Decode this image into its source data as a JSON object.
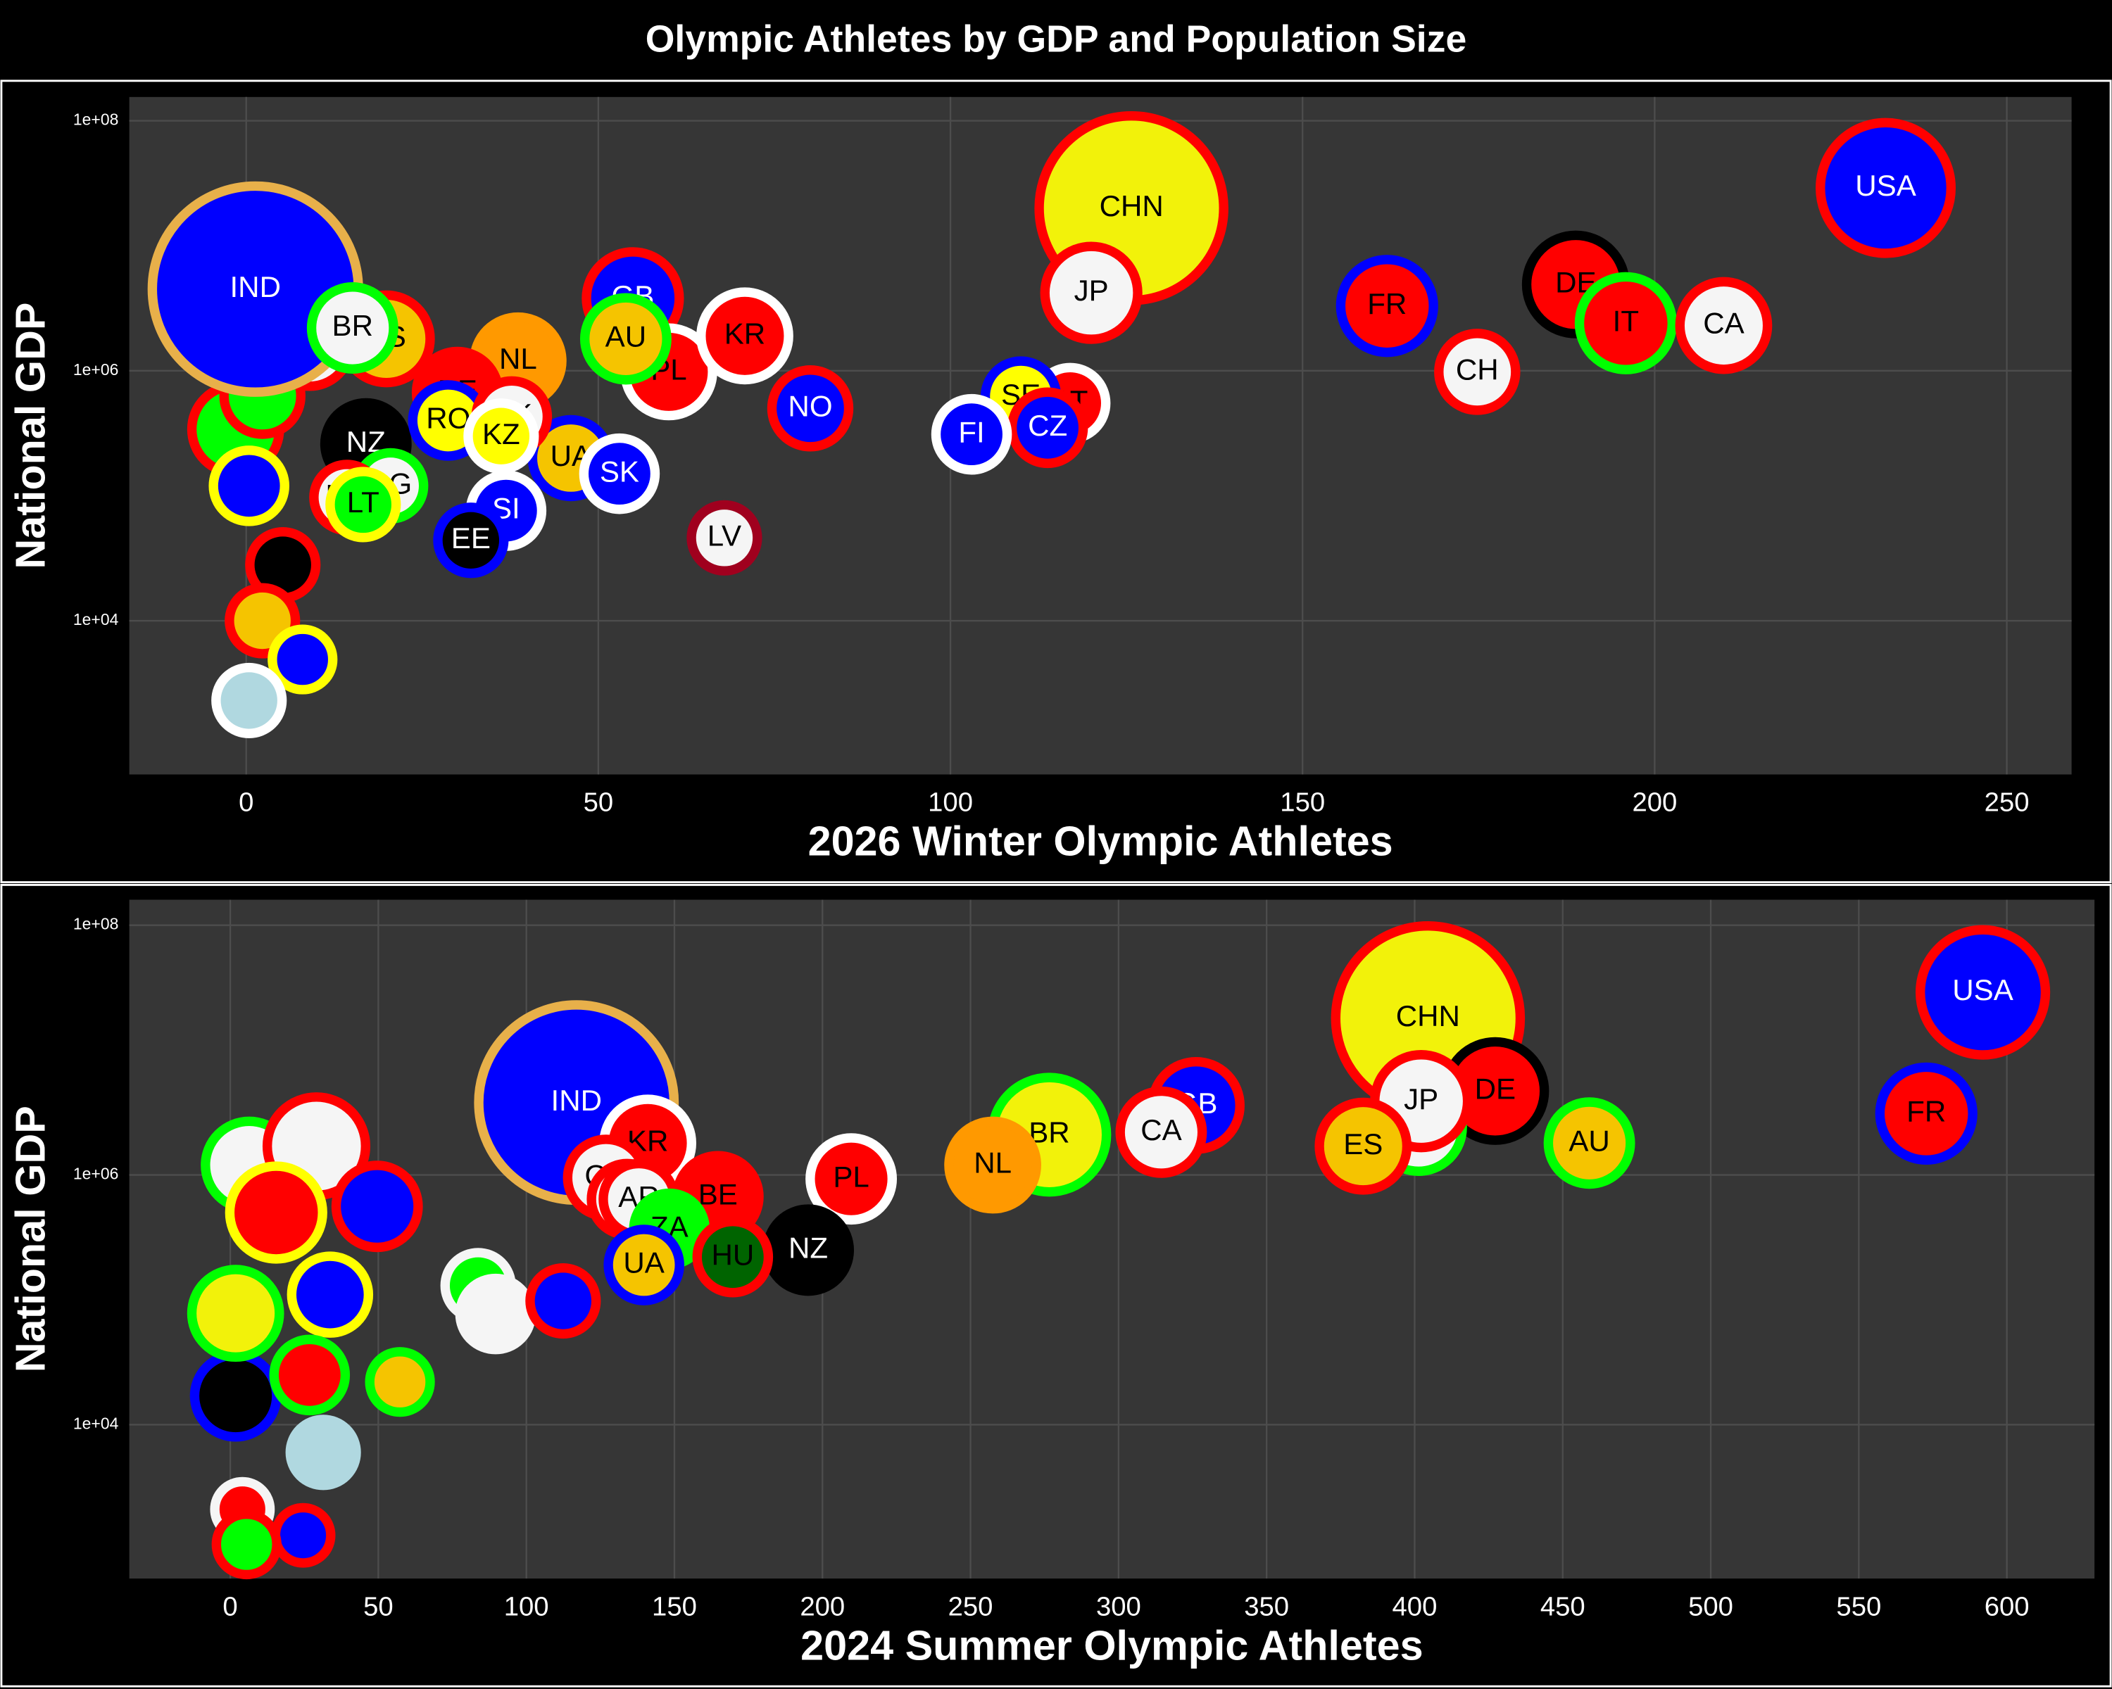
{
  "title": "Olympic Athletes by GDP and Population Size",
  "chart_data": [
    {
      "type": "scatter",
      "x_label": "2026 Winter Olympic Athletes",
      "y_label": "National GDP",
      "log_y": true,
      "grid": true,
      "xlim": [
        -16.6,
        259.2
      ],
      "xticks": [
        0,
        50,
        100,
        150,
        200,
        250
      ],
      "ylim": [
        589,
        155000000
      ],
      "yticks": [
        {
          "value": 10000,
          "label": "1e+04"
        },
        {
          "value": 1000000,
          "label": "1e+06"
        },
        {
          "value": 100000000,
          "label": "1e+08"
        }
      ],
      "labels": [
        null,
        null,
        null,
        null,
        null,
        null,
        null,
        null,
        null,
        "IND",
        "CHN",
        "USA",
        "DE",
        "JP",
        "FR",
        "IT",
        "GB",
        "CA",
        "PL",
        "KR",
        "NL",
        "ES",
        "AU",
        "BR",
        "BE",
        "NZ",
        "CH",
        "NO",
        "UA",
        "RO",
        "DK",
        "SK",
        "AT",
        "SE",
        "CZ",
        "FI",
        "SI",
        "KZ",
        "EE",
        "LV",
        "BG",
        "HR",
        "LT"
      ],
      "x": [
        -1.5,
        4.2,
        9,
        2.3,
        0.4,
        5.2,
        2.3,
        8,
        0.4,
        1.3,
        125.7,
        232.8,
        188.8,
        120,
        162,
        195.9,
        54.9,
        209.8,
        60,
        70.8,
        38.6,
        19.9,
        53.9,
        15.1,
        30,
        17,
        174.8,
        80.1,
        46.1,
        28.7,
        37.7,
        53,
        117,
        110,
        113.8,
        103,
        36.9,
        36.2,
        31.9,
        67.9,
        20.5,
        14.3,
        16.6
      ],
      "values": [
        340000,
        1700000,
        1600000,
        630000,
        120000,
        28000,
        10000,
        4900,
        2300,
        4500000,
        20000000,
        29000000,
        4900000,
        4200000,
        3300000,
        2400000,
        3800000,
        2300000,
        980000,
        1900000,
        1200000,
        1800000,
        1800000,
        2200000,
        670000,
        260000,
        980000,
        500000,
        200000,
        400000,
        430000,
        150000,
        550000,
        620000,
        350000,
        310000,
        76000,
        300000,
        44000,
        46000,
        120000,
        97000,
        85000
      ],
      "sizes": [
        81,
        72,
        72,
        64,
        56,
        49,
        49,
        42,
        49,
        400,
        324,
        169,
        100,
        90,
        90,
        90,
        90,
        81,
        81,
        81,
        81,
        81,
        72,
        72,
        72,
        72,
        64,
        64,
        64,
        56,
        56,
        56,
        56,
        56,
        56,
        56,
        56,
        49,
        49,
        49,
        49,
        49,
        49
      ],
      "fills": [
        "#00ff00",
        "#f5f5f5",
        "#f5f5f5",
        "#00ff00",
        "#0000ff",
        "#000000",
        "#f5c400",
        "#0000ff",
        "#b0d8e0",
        "#0000ff",
        "#f2f20a",
        "#0000ff",
        "#ff0000",
        "#f5f5f5",
        "#ff0000",
        "#ff0000",
        "#0000ff",
        "#f5f5f5",
        "#ff0000",
        "#ff0000",
        "#ff9900",
        "#f5c400",
        "#f5c400",
        "#f5f5f5",
        "#ff0000",
        "#000000",
        "#f5f5f5",
        "#0000ff",
        "#f5c400",
        "#ffff00",
        "#f5f5f5",
        "#0000ff",
        "#ff0000",
        "#ffff00",
        "#0000ff",
        "#0000ff",
        "#0000ff",
        "#ffff00",
        "#000000",
        "#f5f5f5",
        "#f5f5f5",
        "#f5f5f5",
        "#00ff00"
      ],
      "borders": [
        "#ff0000",
        "#ff0000",
        "#ff0000",
        "#ff0000",
        "#ffff00",
        "#ff0000",
        "#ff0000",
        "#ffff00",
        "#ffffff",
        "#e8b04a",
        "#ff0000",
        "#ff0000",
        "#000000",
        "#ff0000",
        "#0000ff",
        "#00ff00",
        "#ff0000",
        "#ff0000",
        "#ffffff",
        "#ffffff",
        "#ff9900",
        "#ff0000",
        "#00ff00",
        "#00ff00",
        "#ff0000",
        "#000000",
        "#ff0000",
        "#ff0000",
        "#0000ff",
        "#0000ff",
        "#ff0000",
        "#ffffff",
        "#ffffff",
        "#0000ff",
        "#ff0000",
        "#ffffff",
        "#ffffff",
        "#ffffff",
        "#0000ff",
        "#a0001e",
        "#00ff00",
        "#ff0000",
        "#ffff00"
      ]
    },
    {
      "type": "scatter",
      "x_label": "2024 Summer Olympic Athletes",
      "y_label": "National GDP",
      "log_y": true,
      "grid": true,
      "xlim": [
        -34.1,
        629.6
      ],
      "xticks": [
        0,
        50,
        100,
        150,
        200,
        250,
        300,
        350,
        400,
        450,
        500,
        550,
        600
      ],
      "ylim": [
        586,
        160000000
      ],
      "yticks": [
        {
          "value": 10000,
          "label": "1e+04"
        },
        {
          "value": 1000000,
          "label": "1e+06"
        },
        {
          "value": 100000000,
          "label": "1e+08"
        }
      ],
      "labels": [
        null,
        null,
        null,
        null,
        null,
        null,
        null,
        null,
        null,
        null,
        null,
        null,
        null,
        null,
        null,
        null,
        "IND",
        "CHN",
        "USA",
        "BR",
        "DE",
        "FR",
        "IT",
        "JP",
        "GB",
        "KR",
        "NL",
        "ES",
        "AU",
        "CA",
        "PL",
        "NZ",
        "BE",
        "CH",
        "IE",
        "AR",
        "ZA",
        "HU",
        "UA"
      ],
      "x": [
        1.8,
        6.4,
        29.1,
        49.6,
        1.8,
        33.7,
        26.8,
        57.3,
        31.4,
        83.7,
        89.6,
        112.4,
        4.1,
        24.6,
        5.5,
        15.5,
        116.9,
        404.5,
        591.9,
        276.6,
        427.2,
        572.8,
        401.3,
        402.2,
        326.2,
        141,
        257.5,
        382.6,
        459,
        314.4,
        209.7,
        195.2,
        164.7,
        126.9,
        134,
        138,
        148.3,
        169.7,
        139.7
      ],
      "values": [
        17000,
        1200000,
        1700000,
        560000,
        78000,
        110000,
        25000,
        22000,
        6000,
        130000,
        77000,
        98000,
        2100,
        1300,
        1100,
        500000,
        3800000,
        18000000,
        29000000,
        2100000,
        4700000,
        3100000,
        2400000,
        3900000,
        3600000,
        1800000,
        1200000,
        1700000,
        1800000,
        2200000,
        930000,
        250000,
        670000,
        950000,
        640000,
        640000,
        370000,
        220000,
        190000
      ],
      "sizes": [
        72,
        81,
        100,
        72,
        81,
        64,
        56,
        42,
        49,
        49,
        56,
        49,
        36,
        36,
        42,
        90,
        361,
        324,
        156,
        132,
        100,
        90,
        81,
        90,
        81,
        81,
        81,
        81,
        72,
        72,
        72,
        72,
        72,
        64,
        56,
        56,
        56,
        56,
        56
      ],
      "fills": [
        "#000000",
        "#f5f5f5",
        "#f5f5f5",
        "#0000ff",
        "#f2f20a",
        "#0000ff",
        "#ff0000",
        "#f5c400",
        "#b0d8e0",
        "#00ff00",
        "#f5f5f5",
        "#0000ff",
        "#ff0000",
        "#0000ff",
        "#00ff00",
        "#ff0000",
        "#0000ff",
        "#f2f20a",
        "#0000ff",
        "#f2f20a",
        "#ff0000",
        "#ff0000",
        "#f5f5f5",
        "#f5f5f5",
        "#0000ff",
        "#ff0000",
        "#ff9900",
        "#f5c400",
        "#f5c400",
        "#f5f5f5",
        "#ff0000",
        "#000000",
        "#ff0000",
        "#f5f5f5",
        "#f5f5f5",
        "#f5f5f5",
        "#00ff00",
        "#006400",
        "#f5c400"
      ],
      "borders": [
        "#0000ff",
        "#00ff00",
        "#ff0000",
        "#ff0000",
        "#00ff00",
        "#ffff00",
        "#00ff00",
        "#00ff00",
        "#b0d8e0",
        "#f5f5f5",
        "#f5f5f5",
        "#ff0000",
        "#f5f5f5",
        "#ff0000",
        "#ff0000",
        "#ffff00",
        "#e8b04a",
        "#ff0000",
        "#ff0000",
        "#00ff00",
        "#000000",
        "#0000ff",
        "#00ff00",
        "#ff0000",
        "#ff0000",
        "#ffffff",
        "#ff9900",
        "#ff0000",
        "#00ff00",
        "#ff0000",
        "#ffffff",
        "#000000",
        "#ff0000",
        "#ff0000",
        "#ff0000",
        "#ff0000",
        "#00ff00",
        "#ff0000",
        "#0000ff"
      ]
    }
  ]
}
